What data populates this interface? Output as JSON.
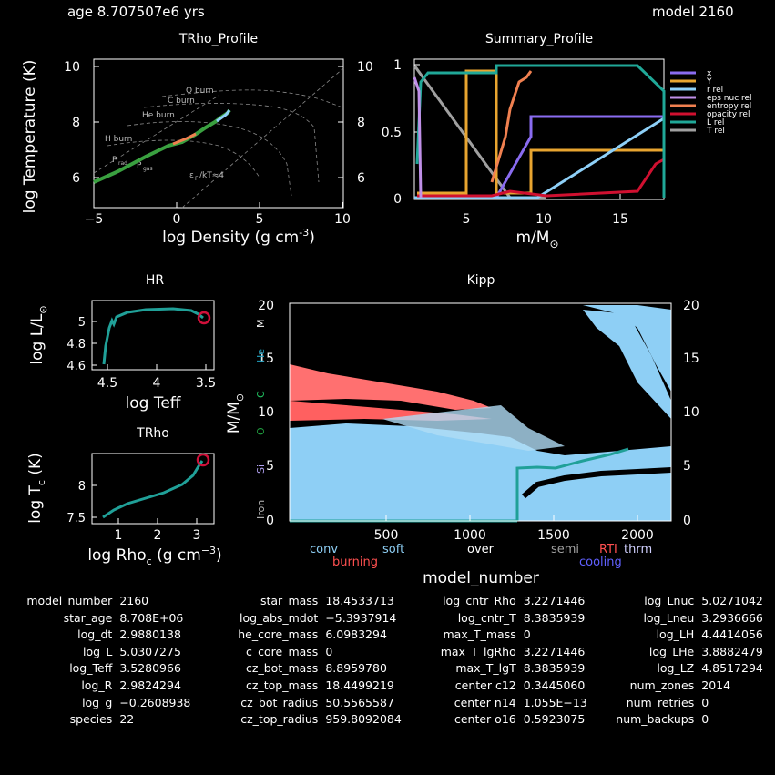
{
  "header": {
    "age": "age 8.707507e6 yrs",
    "model": "model 2160"
  },
  "trho_profile": {
    "title": "TRho_Profile",
    "xlabel": "log Density (g cm",
    "xlabel_exp": "-3",
    "xlabel_end": ")",
    "ylabel": "log Temperature (K)",
    "xticks": [
      "−5",
      "0",
      "5",
      "10"
    ],
    "yticks": [
      "6",
      "8",
      "10"
    ],
    "annotations": {
      "o_burn": "O burn",
      "c_burn": "C burn",
      "he_burn": "He burn",
      "h_burn": "H burn",
      "prad": "P",
      "prad_sub": "rad",
      "pgas": "P",
      "pgas_sub": "gas",
      "ef": "ε",
      "ef_sub": "F",
      "ef_end": "/kT≈4"
    }
  },
  "summary_profile": {
    "title": "Summary_Profile",
    "xlabel": "m/M",
    "xlabel_sub": "⊙",
    "xticks": [
      "5",
      "10",
      "15"
    ],
    "yticks": [
      "0",
      "0.5",
      "1"
    ],
    "legend": [
      {
        "label": "x",
        "color": "#8a6cf0"
      },
      {
        "label": "Y",
        "color": "#e8a530"
      },
      {
        "label": "r rel",
        "color": "#8ed0f8"
      },
      {
        "label": "eps nuc rel",
        "color": "#c090e8"
      },
      {
        "label": "entropy rel",
        "color": "#f08050"
      },
      {
        "label": "opacity rel",
        "color": "#d01030"
      },
      {
        "label": "L rel",
        "color": "#20a898"
      },
      {
        "label": "T rel",
        "color": "#a0a0a0"
      }
    ]
  },
  "hr": {
    "title": "HR",
    "xlabel": "log Teff",
    "ylabel": "log L/L",
    "ylabel_sub": "⊙",
    "xticks": [
      "4.5",
      "4",
      "3.5"
    ],
    "yticks": [
      "4.6",
      "4.8",
      "5"
    ]
  },
  "trho": {
    "title": "TRho",
    "xlabel": "log Rho",
    "xlabel_sub": "c",
    "xlabel_end": " (g cm",
    "xlabel_exp": "−3",
    "xlabel_close": ")",
    "ylabel": "log T",
    "ylabel_sub": "c",
    "ylabel_end": " (K)",
    "xticks": [
      "1",
      "2",
      "3"
    ],
    "yticks": [
      "7.5",
      "8"
    ]
  },
  "kipp": {
    "title": "Kipp",
    "xlabel": "model_number",
    "ylabel": "M/M",
    "ylabel_sub": "⊙",
    "xticks": [
      "500",
      "1000",
      "1500",
      "2000"
    ],
    "yticks": [
      "0",
      "5",
      "10",
      "15",
      "20"
    ],
    "side_labels": [
      {
        "text": "Iron",
        "color": "#e02020"
      },
      {
        "text": "Si",
        "color": "#b0a0f0"
      },
      {
        "text": "O",
        "color": "#20a040"
      },
      {
        "text": "C",
        "color": "#20c060"
      },
      {
        "text": "He",
        "color": "#20a0c0"
      },
      {
        "text": "M",
        "color": "#ffffff"
      }
    ],
    "legend": [
      {
        "text": "conv",
        "color": "#8ecff5"
      },
      {
        "text": "burning",
        "color": "#ff5050"
      },
      {
        "text": "soft",
        "color": "#8ecff5"
      },
      {
        "text": "over",
        "color": "#ffffff"
      },
      {
        "text": "semi",
        "color": "#a0a0a0"
      },
      {
        "text": "RTI",
        "color": "#ff5050"
      },
      {
        "text": "thrm",
        "color": "#d0d0ff"
      },
      {
        "text": "cooling",
        "color": "#6060ff"
      }
    ]
  },
  "stats": [
    [
      [
        "model_number",
        "2160"
      ],
      [
        "star_mass",
        "18.4533713"
      ],
      [
        "log_cntr_Rho",
        "3.2271446"
      ],
      [
        "log_Lnuc",
        "5.0271042"
      ]
    ],
    [
      [
        "star_age",
        "8.708E+06"
      ],
      [
        "log_abs_mdot",
        "−5.3937914"
      ],
      [
        "log_cntr_T",
        "8.3835939"
      ],
      [
        "log_Lneu",
        "3.2936666"
      ]
    ],
    [
      [
        "log_dt",
        "2.9880138"
      ],
      [
        "he_core_mass",
        "6.0983294"
      ],
      [
        "max_T_mass",
        "0"
      ],
      [
        "log_LH",
        "4.4414056"
      ]
    ],
    [
      [
        "log_L",
        "5.0307275"
      ],
      [
        "c_core_mass",
        "0"
      ],
      [
        "max_T_lgRho",
        "3.2271446"
      ],
      [
        "log_LHe",
        "3.8882479"
      ]
    ],
    [
      [
        "log_Teff",
        "3.5280966"
      ],
      [
        "cz_bot_mass",
        "8.8959780"
      ],
      [
        "max_T_lgT",
        "8.3835939"
      ],
      [
        "log_LZ",
        "4.8517294"
      ]
    ],
    [
      [
        "log_R",
        "2.9824294"
      ],
      [
        "cz_top_mass",
        "18.4499219"
      ],
      [
        "center c12",
        "0.3445060"
      ],
      [
        "num_zones",
        "2014"
      ]
    ],
    [
      [
        "log_g",
        "−0.2608938"
      ],
      [
        "cz_bot_radius",
        "50.5565587"
      ],
      [
        "center n14",
        "1.055E−13"
      ],
      [
        "num_retries",
        "0"
      ]
    ],
    [
      [
        "species",
        "22"
      ],
      [
        "cz_top_radius",
        "959.8092084"
      ],
      [
        "center o16",
        "0.5923075"
      ],
      [
        "num_backups",
        "0"
      ]
    ]
  ]
}
